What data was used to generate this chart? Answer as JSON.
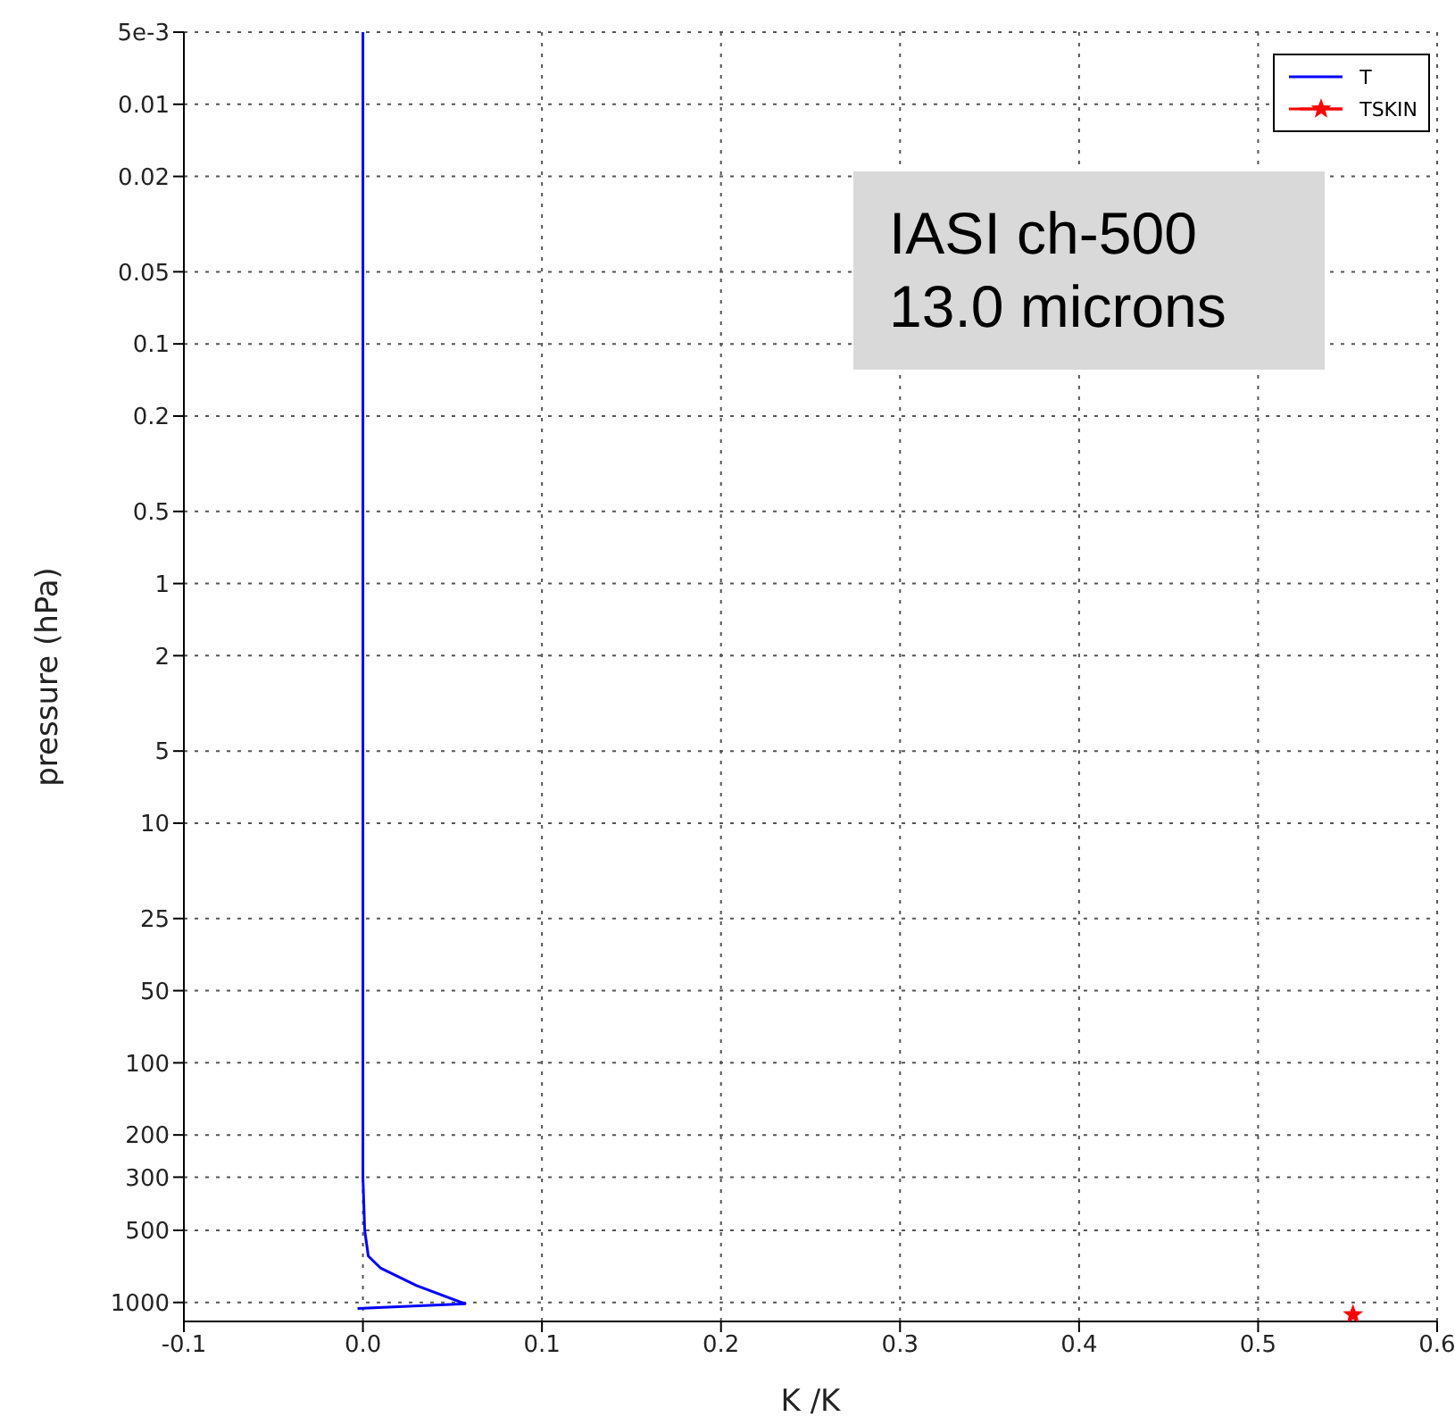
{
  "chart_data": {
    "type": "line",
    "xlabel": "K /K",
    "ylabel": "pressure (hPa)",
    "log": "y",
    "xlim": [
      -0.1,
      0.6
    ],
    "xticks": [
      -0.1,
      {
        "value": 0,
        "label": "0.0"
      },
      0.1,
      0.2,
      0.3,
      0.4,
      0.5,
      0.6
    ],
    "ylim": [
      1200,
      0.005
    ],
    "yticks": [
      {
        "value": 0.005,
        "label": "5e-3"
      },
      0.01,
      0.02,
      0.05,
      0.1,
      0.2,
      0.5,
      1,
      2,
      5,
      10,
      25,
      50,
      100,
      200,
      300,
      500,
      1000
    ],
    "grid": true,
    "legend": "top right",
    "annotations": [
      "IASI ch-500",
      "13.0 microns"
    ],
    "series": [
      {
        "name": "T",
        "type": "line",
        "color": "#0000ff",
        "marker": "none",
        "x": [
          0,
          0,
          0,
          0,
          0,
          0,
          0,
          0,
          0.001,
          0.003,
          0.01,
          0.03,
          0.057,
          -0.003
        ],
        "values": [
          0.005,
          0.01,
          0.1,
          1,
          10,
          50,
          100,
          300,
          500,
          640,
          720,
          850,
          1013,
          1060
        ]
      },
      {
        "name": "TSKIN",
        "type": "scatter",
        "color": "#ff0000",
        "marker": "star",
        "x": [
          0.553
        ],
        "values": [
          1125
        ]
      }
    ]
  }
}
